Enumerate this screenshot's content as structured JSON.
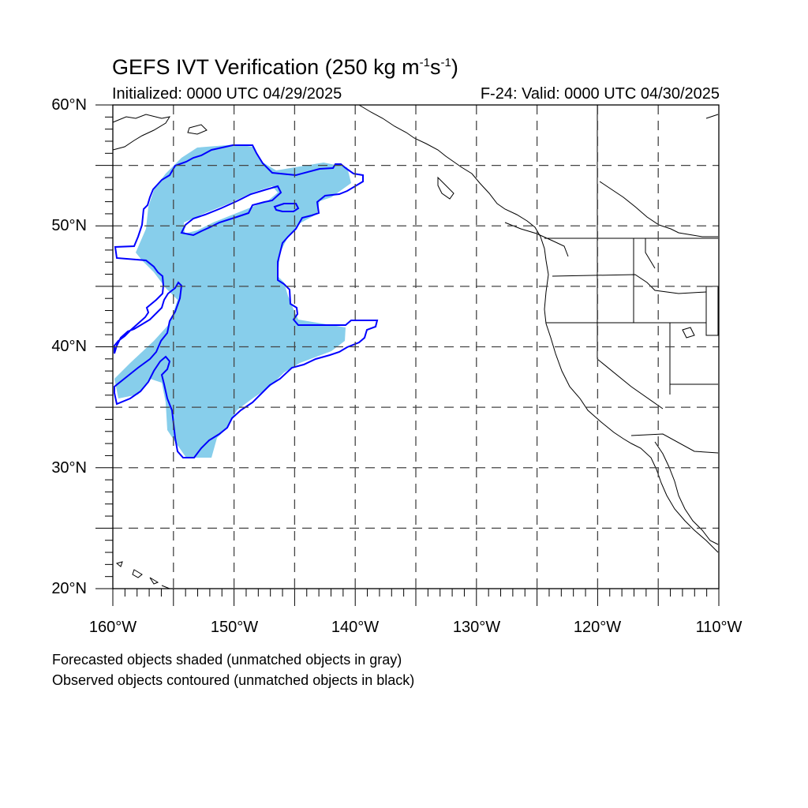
{
  "title": {
    "main": "GEFS IVT Verification (250 kg m",
    "sup1": "-1",
    "mid": "s",
    "sup2": "-1",
    "end": ")"
  },
  "initialized": "Initialized: 0000 UTC 04/29/2025",
  "valid": "F-24: Valid: 0000 UTC 04/30/2025",
  "lat_labels": [
    "60°N",
    "50°N",
    "40°N",
    "30°N",
    "20°N"
  ],
  "lon_labels": [
    "160°W",
    "150°W",
    "140°W",
    "130°W",
    "120°W",
    "110°W"
  ],
  "notes": {
    "forecast": "Forecasted objects shaded (unmatched objects in gray)",
    "observed": "Observed objects contoured (unmatched objects in black)"
  },
  "colors": {
    "forecast_fill": "#87ceeb",
    "observed_contour": "#0000ff",
    "coastline": "#000000",
    "grid": "#444444"
  }
}
